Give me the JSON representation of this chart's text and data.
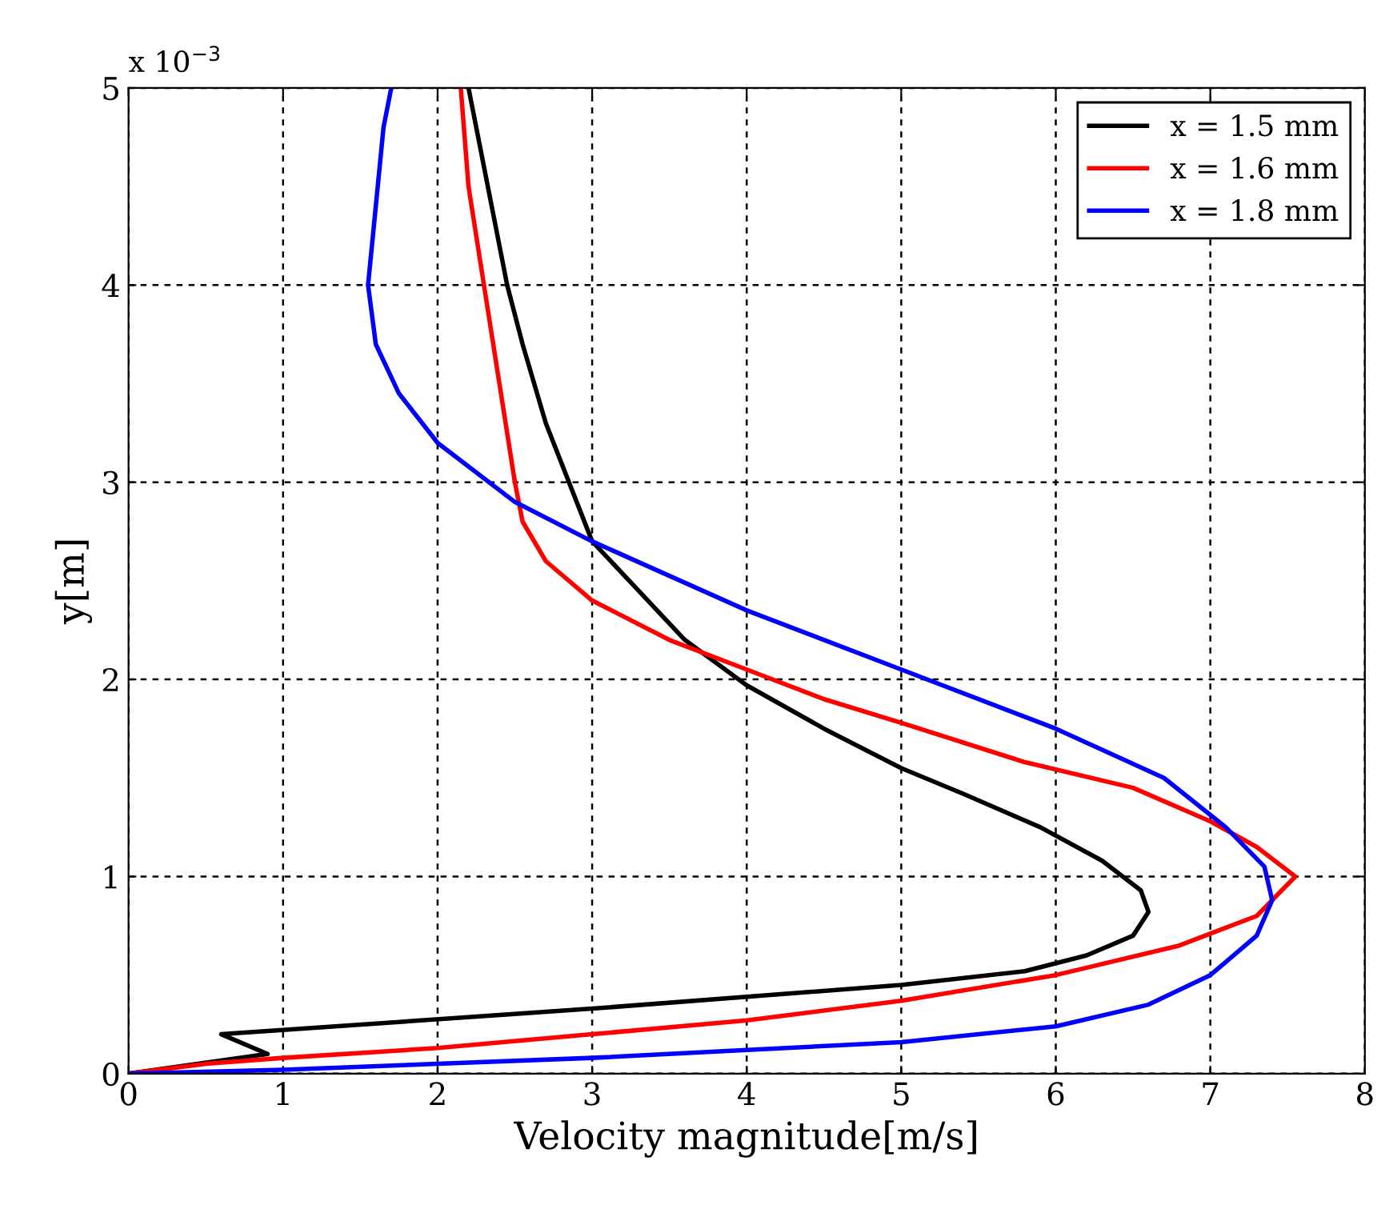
{
  "chart_data": {
    "type": "line",
    "xlabel": "Velocity magnitude[m/s]",
    "ylabel": "y[m]",
    "annotations": [
      "x 10$^{−3}$"
    ],
    "xlim": [
      0,
      8
    ],
    "xticks": [
      0,
      1,
      2,
      3,
      4,
      5,
      6,
      7,
      8
    ],
    "ylim": [
      0,
      5
    ],
    "yticks": [
      0,
      1,
      2,
      3,
      4,
      5
    ],
    "grid": true,
    "legend": "top right",
    "line_style": "solid",
    "marker": "none",
    "series": [
      {
        "name": "x = 1.5 mm",
        "color": "#000000",
        "x": [
          0,
          0.9,
          0.6,
          3,
          5,
          5.8,
          6.2,
          6.5,
          6.6,
          6.55,
          6.3,
          5.9,
          5.4,
          5.0,
          4.5,
          4.0,
          3.6,
          3.3,
          3.0,
          2.85,
          2.7,
          2.55,
          2.45,
          2.35,
          2.2
        ],
        "values": [
          0,
          0.1,
          0.2,
          0.33,
          0.45,
          0.52,
          0.6,
          0.7,
          0.82,
          0.93,
          1.08,
          1.25,
          1.42,
          1.55,
          1.75,
          1.97,
          2.2,
          2.45,
          2.7,
          3.0,
          3.3,
          3.7,
          4.0,
          4.4,
          5.0
        ]
      },
      {
        "name": "x = 1.6 mm",
        "color": "#ff0000",
        "x": [
          0,
          0.5,
          1,
          2,
          3,
          4,
          5,
          6,
          6.8,
          7.3,
          7.55,
          7.3,
          7.0,
          6.5,
          5.8,
          5,
          4.5,
          4.0,
          3.5,
          3.0,
          2.7,
          2.55,
          2.5,
          2.4,
          2.3,
          2.2,
          2.15
        ],
        "values": [
          0,
          0.05,
          0.08,
          0.13,
          0.2,
          0.27,
          0.37,
          0.5,
          0.65,
          0.8,
          1.0,
          1.15,
          1.28,
          1.45,
          1.58,
          1.78,
          1.9,
          2.05,
          2.2,
          2.4,
          2.6,
          2.8,
          3.0,
          3.5,
          4.0,
          4.5,
          5.0
        ]
      },
      {
        "name": "x = 1.8 mm",
        "color": "#0000ff",
        "x": [
          0,
          1,
          2,
          3,
          4,
          5,
          6,
          6.6,
          7.0,
          7.3,
          7.4,
          7.35,
          7.1,
          6.7,
          6.0,
          5.0,
          4.0,
          3.0,
          2.5,
          2.0,
          1.75,
          1.6,
          1.55,
          1.6,
          1.65,
          1.7
        ],
        "values": [
          0,
          0.02,
          0.05,
          0.08,
          0.12,
          0.16,
          0.24,
          0.35,
          0.5,
          0.7,
          0.88,
          1.05,
          1.25,
          1.5,
          1.75,
          2.05,
          2.35,
          2.7,
          2.9,
          3.2,
          3.45,
          3.7,
          4.0,
          4.4,
          4.8,
          5.0
        ]
      }
    ]
  }
}
